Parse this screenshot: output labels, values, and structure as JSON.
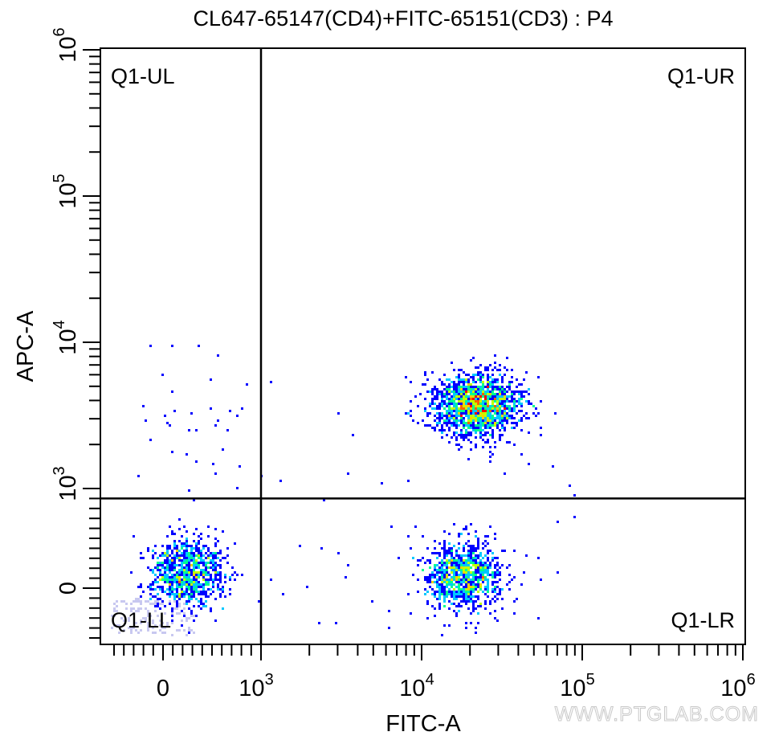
{
  "chart_data": {
    "type": "scatter",
    "subtype": "flow-cytometry-density-dot-plot",
    "title": "CL647-65147(CD4)+FITC-65151(CD3) : P4",
    "xlabel": "FITC-A",
    "ylabel": "APC-A",
    "x_scale": "biexponential",
    "y_scale": "biexponential",
    "xlim": [
      -600,
      1000000
    ],
    "ylim": [
      -550,
      1000000
    ],
    "x_ticks": [
      {
        "value": 0,
        "base": "0",
        "exp": ""
      },
      {
        "value": 1000,
        "base": "10",
        "exp": "3"
      },
      {
        "value": 10000,
        "base": "10",
        "exp": "4"
      },
      {
        "value": 100000,
        "base": "10",
        "exp": "5"
      },
      {
        "value": 1000000,
        "base": "10",
        "exp": "6"
      }
    ],
    "y_ticks": [
      {
        "value": 0,
        "base": "0",
        "exp": ""
      },
      {
        "value": 1000,
        "base": "10",
        "exp": "3"
      },
      {
        "value": 10000,
        "base": "10",
        "exp": "4"
      },
      {
        "value": 100000,
        "base": "10",
        "exp": "5"
      },
      {
        "value": 1000000,
        "base": "10",
        "exp": "6"
      }
    ],
    "quadrant_gate": {
      "x": 1000,
      "y": 900
    },
    "quadrants": [
      {
        "id": "UL",
        "label": "Q1-UL"
      },
      {
        "id": "UR",
        "label": "Q1-UR"
      },
      {
        "id": "LL",
        "label": "Q1-LL"
      },
      {
        "id": "LR",
        "label": "Q1-LR"
      }
    ],
    "populations": [
      {
        "quadrant": "UR",
        "fitc_center": 22000,
        "apc_center": 3700
      },
      {
        "quadrant": "LR",
        "fitc_center": 18000,
        "apc_center": 120
      },
      {
        "quadrant": "LL",
        "fitc_center": 250,
        "apc_center": 150
      }
    ],
    "colormap": [
      "#0000ff",
      "#0070ff",
      "#00c8ff",
      "#00ff90",
      "#c0ff00",
      "#ffd000",
      "#ff6000",
      "#ff0000"
    ],
    "background_events_color": "#c8c8f0",
    "grid": false,
    "legend": "none"
  },
  "watermark": "WWW.PTGLAB.COM"
}
